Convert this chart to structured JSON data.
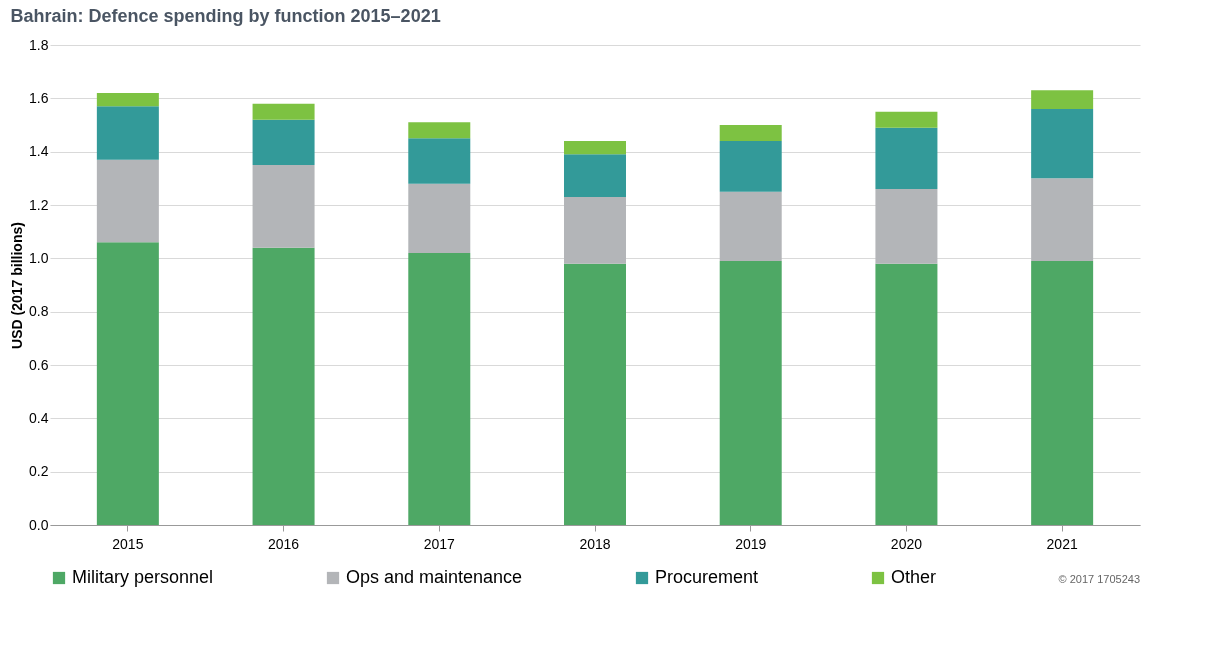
{
  "chart_data": {
    "type": "bar",
    "title": "Bahrain: Defence spending by function 2015–2021",
    "ylabel": "USD (2017 billions)",
    "categories": [
      "2015",
      "2016",
      "2017",
      "2018",
      "2019",
      "2020",
      "2021"
    ],
    "stacked": true,
    "series": [
      {
        "name": "Military personnel",
        "color": "#4ea865",
        "values": [
          1.06,
          1.04,
          1.02,
          0.98,
          0.99,
          0.98,
          0.99
        ]
      },
      {
        "name": "Ops and maintenance",
        "color": "#b3b5b8",
        "values": [
          0.31,
          0.31,
          0.26,
          0.25,
          0.26,
          0.28,
          0.31
        ]
      },
      {
        "name": "Procurement",
        "color": "#339a99",
        "values": [
          0.2,
          0.17,
          0.17,
          0.16,
          0.19,
          0.23,
          0.26
        ]
      },
      {
        "name": "Other",
        "color": "#7dc242",
        "values": [
          0.05,
          0.06,
          0.06,
          0.05,
          0.06,
          0.06,
          0.07
        ]
      }
    ],
    "ylim": [
      0,
      1.8
    ],
    "yticks": [
      {
        "value": 0,
        "label": "0.0"
      },
      {
        "value": 0.2,
        "label": "0.2"
      },
      {
        "value": 0.4,
        "label": "0.4"
      },
      {
        "value": 0.6,
        "label": "0.6"
      },
      {
        "value": 0.8,
        "label": "0.8"
      },
      {
        "value": 1,
        "label": "1.0"
      },
      {
        "value": 1.2,
        "label": "1.2"
      },
      {
        "value": 1.4,
        "label": "1.4"
      },
      {
        "value": 1.6,
        "label": "1.6"
      },
      {
        "value": 1.8,
        "label": "1.8"
      }
    ],
    "grid": "y",
    "legend": "bottom",
    "annotations": [
      "© 2017 1705243"
    ]
  }
}
